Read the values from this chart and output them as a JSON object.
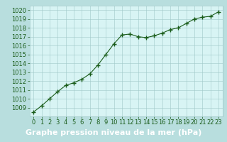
{
  "x": [
    0,
    1,
    2,
    3,
    4,
    5,
    6,
    7,
    8,
    9,
    10,
    11,
    12,
    13,
    14,
    15,
    16,
    17,
    18,
    19,
    20,
    21,
    22,
    23
  ],
  "y": [
    1008.5,
    1009.2,
    1010.0,
    1010.8,
    1011.5,
    1011.8,
    1012.2,
    1012.8,
    1013.8,
    1015.0,
    1016.2,
    1017.2,
    1017.3,
    1017.0,
    1016.9,
    1017.1,
    1017.4,
    1017.8,
    1018.0,
    1018.5,
    1019.0,
    1019.2,
    1019.3,
    1019.8
  ],
  "ylim": [
    1008.0,
    1020.5
  ],
  "xlim": [
    -0.5,
    23.5
  ],
  "yticks": [
    1009,
    1010,
    1011,
    1012,
    1013,
    1014,
    1015,
    1016,
    1017,
    1018,
    1019,
    1020
  ],
  "xticks": [
    0,
    1,
    2,
    3,
    4,
    5,
    6,
    7,
    8,
    9,
    10,
    11,
    12,
    13,
    14,
    15,
    16,
    17,
    18,
    19,
    20,
    21,
    22,
    23
  ],
  "line_color": "#1a5c1a",
  "marker": "+",
  "marker_size": 4,
  "marker_linewidth": 1.0,
  "bg_plot": "#d8f4f4",
  "bg_fig": "#b8dede",
  "bg_label_band": "#4a8a4a",
  "grid_color": "#a0c8c8",
  "xlabel": "Graphe pression niveau de la mer (hPa)",
  "xlabel_color": "#ffffff",
  "tick_color": "#1a5c1a",
  "label_fontsize": 6,
  "xlabel_fontsize": 8,
  "linewidth": 0.8
}
